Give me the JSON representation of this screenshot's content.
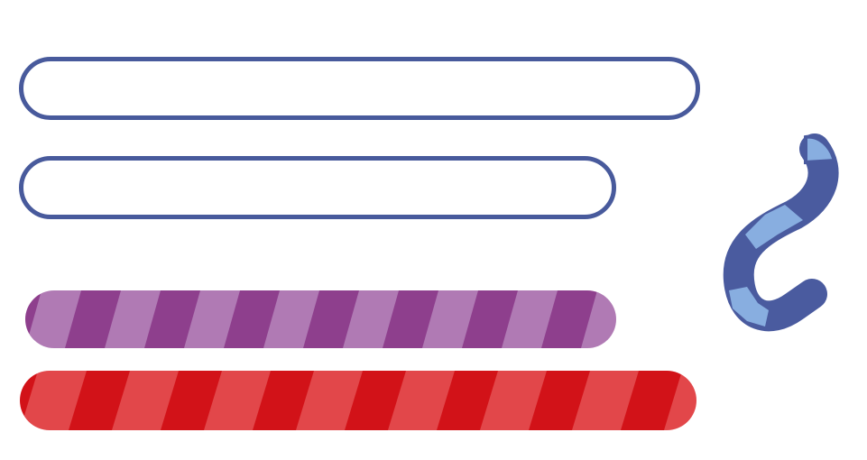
{
  "colors": {
    "background": "#ffffff",
    "outline_blue": "#485a9c",
    "purple_light": "#b07ab4",
    "purple_dark": "#8e3f8d",
    "red_light": "#e2474a",
    "red_dark": "#d21218",
    "hook_dark": "#4a5b9f",
    "hook_light": "#88aee0"
  },
  "bars": [
    {
      "name": "outline-bar-long",
      "style": "outline",
      "stroke": "#485a9c"
    },
    {
      "name": "outline-bar-medium",
      "style": "outline",
      "stroke": "#485a9c"
    },
    {
      "name": "striped-bar-purple",
      "style": "striped",
      "base": "#b07ab4",
      "stripe": "#8e3f8d"
    },
    {
      "name": "striped-bar-red",
      "style": "striped",
      "base": "#e2474a",
      "stripe": "#d21218"
    }
  ],
  "hook": {
    "name": "candy-hook",
    "icon": "candy-cane-hook-icon"
  }
}
